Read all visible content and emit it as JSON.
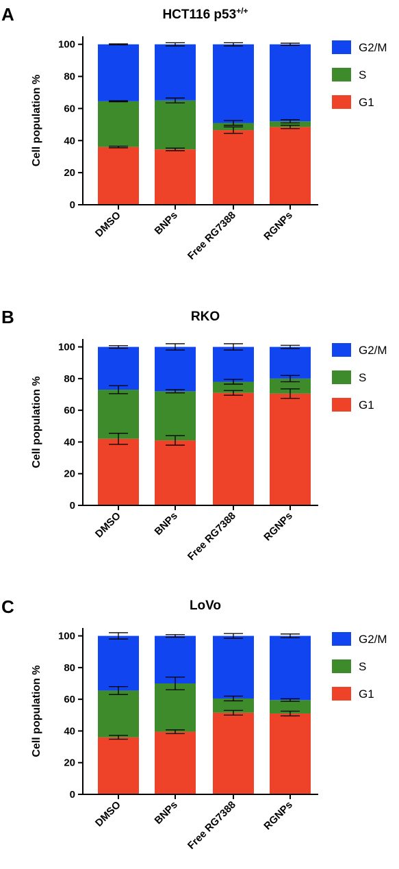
{
  "chart_data": [
    {
      "panel": "A",
      "type": "bar",
      "stacked": true,
      "title": "HCT116 p53",
      "title_superscript": "+/+",
      "ylabel": "Cell population %",
      "ylim": [
        0,
        105
      ],
      "yticks": [
        0,
        20,
        40,
        60,
        80,
        100
      ],
      "categories": [
        "DMSO",
        "BNPs",
        "Free RG7388",
        "RGNPs"
      ],
      "series": [
        {
          "name": "G1",
          "color": "#ee4329",
          "values": [
            36,
            34.5,
            46.5,
            48.5
          ],
          "errors": [
            0.5,
            0.8,
            2.0,
            1.0
          ]
        },
        {
          "name": "S",
          "color": "#3e8b2c",
          "values": [
            28.5,
            30.5,
            4.5,
            3.5
          ],
          "errors": [
            0.3,
            1.5,
            1.5,
            1.0
          ]
        },
        {
          "name": "G2/M",
          "color": "#1145f0",
          "values": [
            35.5,
            35,
            49,
            48
          ],
          "errors": [
            0.3,
            1.0,
            1.0,
            0.7
          ]
        }
      ],
      "legend": [
        "G2/M",
        "S",
        "G1"
      ]
    },
    {
      "panel": "B",
      "type": "bar",
      "stacked": true,
      "title": "RKO",
      "title_superscript": "",
      "ylabel": "Cell population %",
      "ylim": [
        0,
        105
      ],
      "yticks": [
        0,
        20,
        40,
        60,
        80,
        100
      ],
      "categories": [
        "DMSO",
        "BNPs",
        "Free RG7388",
        "RGNPs"
      ],
      "series": [
        {
          "name": "G1",
          "color": "#ee4329",
          "values": [
            42,
            41,
            71,
            70.5
          ],
          "errors": [
            3.5,
            3.0,
            1.5,
            3.0
          ]
        },
        {
          "name": "S",
          "color": "#3e8b2c",
          "values": [
            31,
            31,
            7,
            9.5
          ],
          "errors": [
            2.5,
            1.0,
            1.5,
            2.0
          ]
        },
        {
          "name": "G2/M",
          "color": "#1145f0",
          "values": [
            27,
            28,
            22,
            20
          ],
          "errors": [
            0.8,
            2.0,
            2.0,
            1.0
          ]
        }
      ],
      "legend": [
        "G2/M",
        "S",
        "G1"
      ]
    },
    {
      "panel": "C",
      "type": "bar",
      "stacked": true,
      "title": "LoVo",
      "title_superscript": "",
      "ylabel": "Cell population %",
      "ylim": [
        0,
        105
      ],
      "yticks": [
        0,
        20,
        40,
        60,
        80,
        100
      ],
      "categories": [
        "DMSO",
        "BNPs",
        "Free RG7388",
        "RGNPs"
      ],
      "series": [
        {
          "name": "G1",
          "color": "#ee4329",
          "values": [
            36,
            39.5,
            51.5,
            51
          ],
          "errors": [
            1.2,
            1.2,
            1.5,
            1.5
          ]
        },
        {
          "name": "S",
          "color": "#3e8b2c",
          "values": [
            29.5,
            30.5,
            9,
            8.5
          ],
          "errors": [
            2.5,
            4.0,
            1.5,
            0.8
          ]
        },
        {
          "name": "G2/M",
          "color": "#1145f0",
          "values": [
            34.5,
            30,
            39.5,
            40.5
          ],
          "errors": [
            2.0,
            0.8,
            1.5,
            1.2
          ]
        }
      ],
      "legend": [
        "G2/M",
        "S",
        "G1"
      ]
    }
  ]
}
